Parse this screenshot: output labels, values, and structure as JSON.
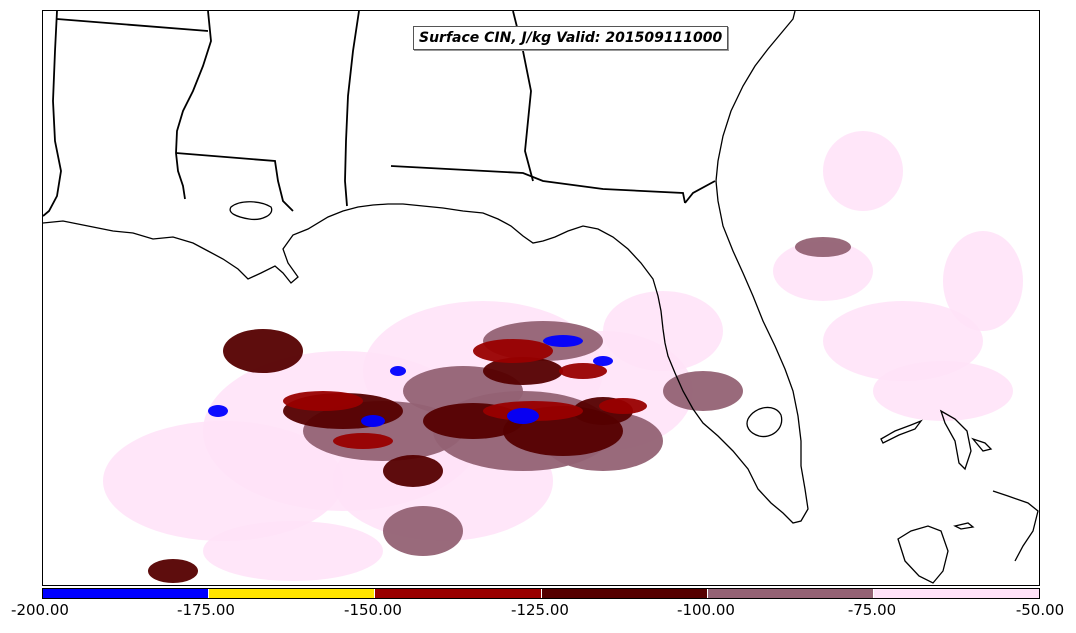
{
  "title": "Surface CIN, J/kg Valid: 201509111000",
  "colorbar": {
    "ticks": [
      "-200.00",
      "-175.00",
      "-150.00",
      "-125.00",
      "-100.00",
      "-75.00",
      "-50.00"
    ],
    "colors": [
      "#0000ff",
      "#ffe400",
      "#990000",
      "#550000",
      "#946274",
      "#ffe2f8"
    ]
  },
  "palette": {
    "land_outline": "#000000",
    "background": "#ffffff"
  }
}
